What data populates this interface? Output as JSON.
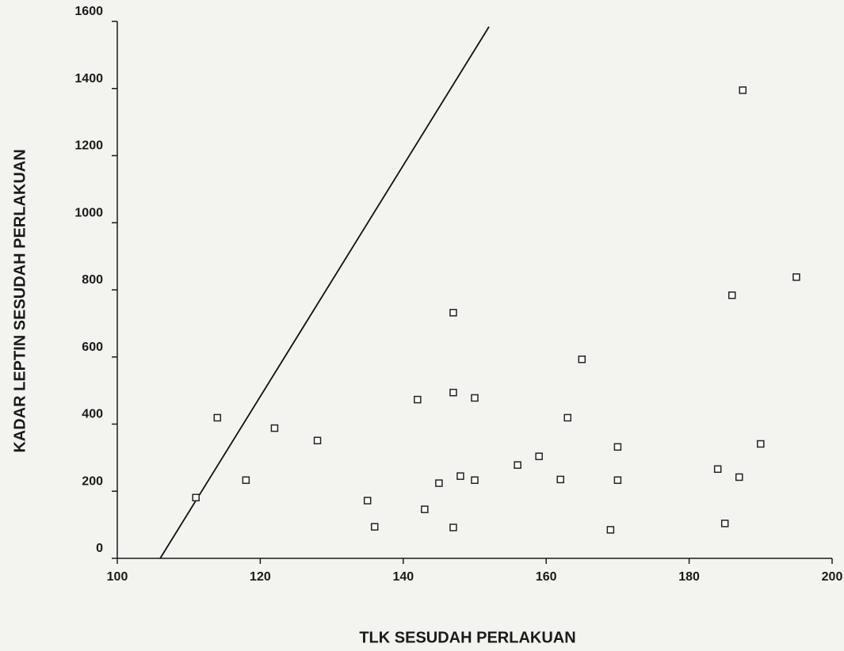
{
  "chart_data": {
    "type": "scatter",
    "xlabel": "TLK  SESUDAH PERLAKUAN",
    "ylabel": "KADAR LEPTIN SESUDAH PERLAKUAN",
    "x": [
      111,
      114,
      118,
      122,
      128,
      135,
      136,
      142,
      143,
      145,
      147,
      147,
      147,
      148,
      150,
      150,
      156,
      159,
      162,
      163,
      165,
      169,
      170,
      170,
      184,
      185,
      186,
      187,
      187.5,
      190,
      195
    ],
    "values": [
      181,
      419,
      233,
      388,
      351,
      172,
      94,
      473,
      146,
      224,
      732,
      494,
      92,
      245,
      478,
      233,
      278,
      304,
      235,
      419,
      593,
      85,
      332,
      233,
      266,
      104,
      784,
      242,
      1395,
      341,
      838
    ],
    "color": "#222222",
    "fit_line": {
      "x": [
        106,
        152
      ],
      "y": [
        0,
        1584
      ],
      "color": "#111111"
    },
    "xlim": [
      100,
      200
    ],
    "xticks": [
      100,
      120,
      140,
      160,
      180,
      200
    ],
    "ylim": [
      0,
      1600
    ],
    "yticks": [
      0,
      200,
      400,
      600,
      800,
      1000,
      1200,
      1400,
      1600
    ],
    "grid": false
  }
}
